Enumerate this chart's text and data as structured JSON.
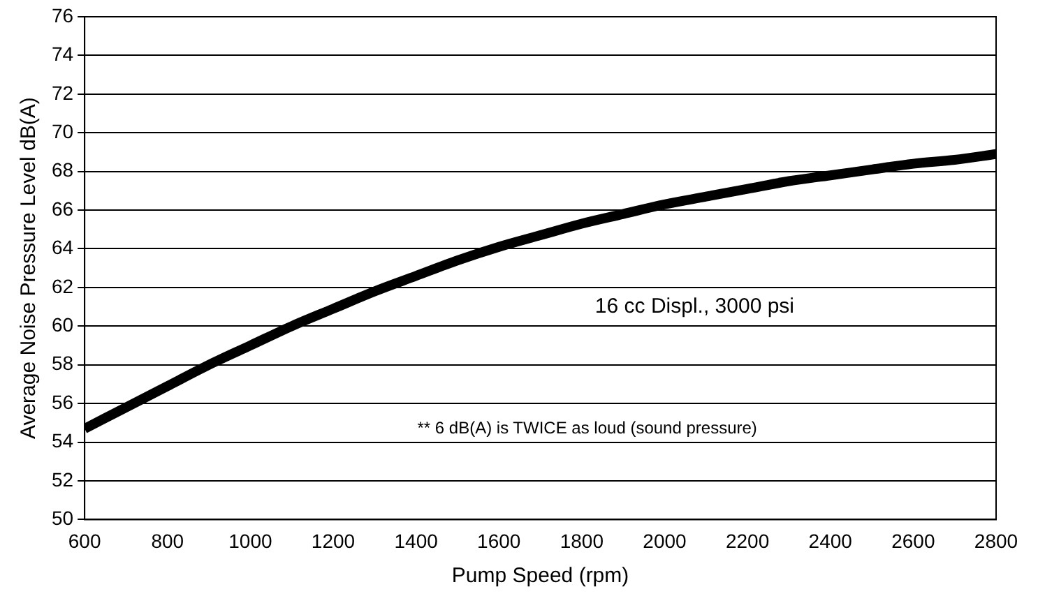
{
  "chart_data": {
    "type": "line",
    "xlabel": "Pump Speed (rpm)",
    "ylabel": "Average Noise Pressure Level dB(A)",
    "x": [
      600,
      700,
      800,
      900,
      1000,
      1100,
      1200,
      1300,
      1400,
      1500,
      1600,
      1700,
      1800,
      1900,
      2000,
      2100,
      2200,
      2300,
      2400,
      2500,
      2600,
      2700,
      2800
    ],
    "series": [
      {
        "color": "#000000",
        "values": [
          54.7,
          55.8,
          56.9,
          58.0,
          59.0,
          60.0,
          60.9,
          61.8,
          62.6,
          63.4,
          64.1,
          64.7,
          65.3,
          65.8,
          66.3,
          66.7,
          67.1,
          67.5,
          67.8,
          68.1,
          68.4,
          68.6,
          68.9
        ]
      }
    ],
    "xlim": [
      600,
      2800
    ],
    "xticks": [
      600,
      800,
      1000,
      1200,
      1400,
      1600,
      1800,
      2000,
      2200,
      2400,
      2600,
      2800
    ],
    "ylim": [
      50,
      76
    ],
    "yticks": [
      50,
      52,
      54,
      56,
      58,
      60,
      62,
      64,
      66,
      68,
      70,
      72,
      74,
      76
    ],
    "grid": "y",
    "legend": false,
    "marker": "none",
    "line_style": "solid",
    "annotations": [
      "16 cc Displ., 3000 psi",
      "** 6 dB(A) is TWICE as loud (sound pressure)"
    ]
  }
}
